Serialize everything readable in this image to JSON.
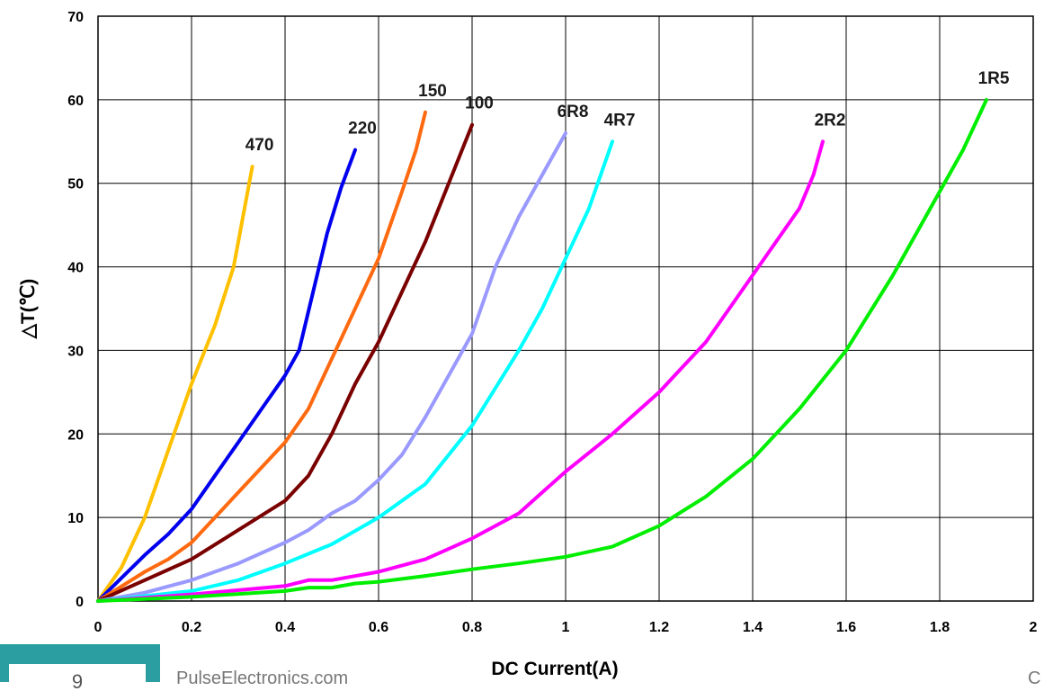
{
  "chart_data": {
    "type": "line",
    "title": "",
    "xlabel": "DC Current(A)",
    "ylabel": "△T(℃)",
    "xlim": [
      0,
      2
    ],
    "ylim": [
      0,
      70
    ],
    "xticks": [
      "0",
      "0.2",
      "0.4",
      "0.6",
      "0.8",
      "1",
      "1.2",
      "1.4",
      "1.6",
      "1.8",
      "2"
    ],
    "yticks": [
      "0",
      "10",
      "20",
      "30",
      "40",
      "50",
      "60",
      "70"
    ],
    "grid": true,
    "legend": "inline labels at curve ends",
    "series": [
      {
        "name": "470",
        "color": "#ffc000",
        "points": [
          [
            0,
            0
          ],
          [
            0.05,
            4
          ],
          [
            0.1,
            10
          ],
          [
            0.15,
            18
          ],
          [
            0.2,
            26
          ],
          [
            0.25,
            33
          ],
          [
            0.29,
            40
          ],
          [
            0.31,
            46
          ],
          [
            0.33,
            52
          ]
        ]
      },
      {
        "name": "220",
        "color": "#0000ee",
        "points": [
          [
            0,
            0
          ],
          [
            0.1,
            5.5
          ],
          [
            0.15,
            8
          ],
          [
            0.2,
            11
          ],
          [
            0.25,
            15
          ],
          [
            0.3,
            19
          ],
          [
            0.35,
            23
          ],
          [
            0.4,
            27
          ],
          [
            0.43,
            30
          ],
          [
            0.46,
            37
          ],
          [
            0.49,
            44
          ],
          [
            0.52,
            49.5
          ],
          [
            0.55,
            54
          ]
        ]
      },
      {
        "name": "150",
        "color": "#ff6a10",
        "points": [
          [
            0,
            0
          ],
          [
            0.1,
            3.5
          ],
          [
            0.15,
            5
          ],
          [
            0.2,
            7
          ],
          [
            0.3,
            13
          ],
          [
            0.4,
            19
          ],
          [
            0.45,
            23
          ],
          [
            0.5,
            29
          ],
          [
            0.55,
            35
          ],
          [
            0.6,
            41
          ],
          [
            0.65,
            49
          ],
          [
            0.68,
            54
          ],
          [
            0.7,
            58.5
          ]
        ]
      },
      {
        "name": "100",
        "color": "#7a0000",
        "points": [
          [
            0,
            0
          ],
          [
            0.1,
            2.5
          ],
          [
            0.2,
            5
          ],
          [
            0.3,
            8.5
          ],
          [
            0.4,
            12
          ],
          [
            0.45,
            15
          ],
          [
            0.5,
            20
          ],
          [
            0.55,
            26
          ],
          [
            0.6,
            31
          ],
          [
            0.65,
            37
          ],
          [
            0.7,
            43
          ],
          [
            0.75,
            50
          ],
          [
            0.8,
            57
          ]
        ]
      },
      {
        "name": "6R8",
        "color": "#9999ff",
        "points": [
          [
            0,
            0
          ],
          [
            0.1,
            1
          ],
          [
            0.2,
            2.5
          ],
          [
            0.3,
            4.5
          ],
          [
            0.4,
            7
          ],
          [
            0.45,
            8.5
          ],
          [
            0.5,
            10.5
          ],
          [
            0.55,
            12
          ],
          [
            0.6,
            14.5
          ],
          [
            0.65,
            17.5
          ],
          [
            0.7,
            22
          ],
          [
            0.75,
            27
          ],
          [
            0.8,
            32
          ],
          [
            0.85,
            40
          ],
          [
            0.9,
            46
          ],
          [
            0.95,
            51
          ],
          [
            1.0,
            56
          ]
        ]
      },
      {
        "name": "4R7",
        "color": "#00ffff",
        "points": [
          [
            0,
            0
          ],
          [
            0.2,
            1.2
          ],
          [
            0.3,
            2.5
          ],
          [
            0.4,
            4.5
          ],
          [
            0.5,
            6.8
          ],
          [
            0.6,
            10
          ],
          [
            0.7,
            14
          ],
          [
            0.8,
            21
          ],
          [
            0.9,
            30
          ],
          [
            0.95,
            35
          ],
          [
            1.0,
            41
          ],
          [
            1.05,
            47
          ],
          [
            1.1,
            55
          ]
        ]
      },
      {
        "name": "2R2",
        "color": "#ff00ff",
        "points": [
          [
            0,
            0
          ],
          [
            0.2,
            0.8
          ],
          [
            0.4,
            1.8
          ],
          [
            0.45,
            2.5
          ],
          [
            0.5,
            2.5
          ],
          [
            0.6,
            3.5
          ],
          [
            0.7,
            5
          ],
          [
            0.8,
            7.5
          ],
          [
            0.9,
            10.5
          ],
          [
            0.95,
            13
          ],
          [
            1.0,
            15.5
          ],
          [
            1.1,
            20
          ],
          [
            1.2,
            25
          ],
          [
            1.3,
            31
          ],
          [
            1.4,
            39
          ],
          [
            1.5,
            47
          ],
          [
            1.53,
            51
          ],
          [
            1.55,
            55
          ]
        ]
      },
      {
        "name": "1R5",
        "color": "#00ee00",
        "points": [
          [
            0,
            0
          ],
          [
            0.2,
            0.5
          ],
          [
            0.4,
            1.2
          ],
          [
            0.45,
            1.6
          ],
          [
            0.5,
            1.6
          ],
          [
            0.55,
            2.1
          ],
          [
            0.6,
            2.3
          ],
          [
            0.7,
            3
          ],
          [
            0.8,
            3.8
          ],
          [
            0.9,
            4.5
          ],
          [
            1.0,
            5.3
          ],
          [
            1.1,
            6.5
          ],
          [
            1.2,
            9
          ],
          [
            1.3,
            12.5
          ],
          [
            1.4,
            17
          ],
          [
            1.5,
            23
          ],
          [
            1.6,
            30
          ],
          [
            1.7,
            39
          ],
          [
            1.8,
            49
          ],
          [
            1.85,
            54
          ],
          [
            1.9,
            60
          ]
        ]
      }
    ]
  },
  "footer": {
    "page_number": "9",
    "site": "PulseElectronics.com",
    "right_mark": "C"
  }
}
